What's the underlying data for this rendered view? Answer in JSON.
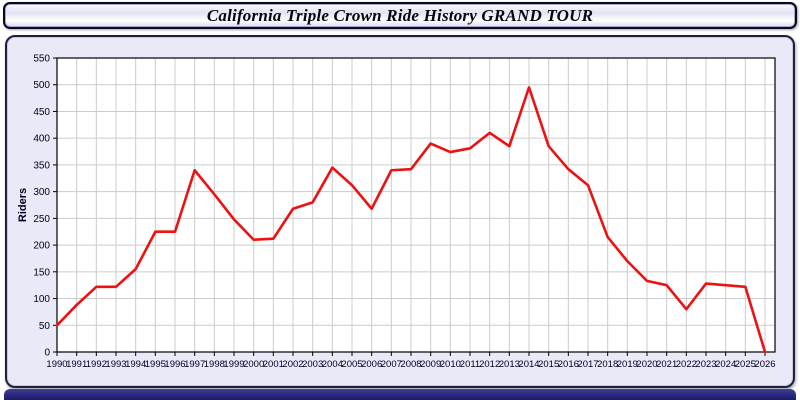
{
  "title": "California Triple Crown Ride History GRAND TOUR",
  "colors": {
    "line": "#ee1111",
    "grid": "#cccccc",
    "axis": "#000000",
    "panel_background": "#e9e9f7",
    "plot_background": "#ffffff",
    "bottom_bar": "#22227a",
    "tick_text": "#000022"
  },
  "chart_data": {
    "type": "line",
    "title": "California Triple Crown Ride History GRAND TOUR",
    "xlabel": "",
    "ylabel": "Riders",
    "ylim": [
      0,
      550
    ],
    "ytick_step": 50,
    "grid": true,
    "legend_position": "none",
    "x": [
      1990,
      1991,
      1992,
      1993,
      1994,
      1995,
      1996,
      1997,
      1998,
      1999,
      2000,
      2001,
      2002,
      2003,
      2004,
      2005,
      2006,
      2007,
      2008,
      2009,
      2010,
      2011,
      2012,
      2013,
      2014,
      2015,
      2016,
      2017,
      2018,
      2019,
      2020,
      2021,
      2022,
      2023,
      2024,
      2025,
      2026
    ],
    "series": [
      {
        "name": "Riders",
        "values": [
          50,
          88,
          122,
          122,
          155,
          225,
          225,
          340,
          295,
          248,
          210,
          212,
          268,
          280,
          345,
          312,
          268,
          340,
          342,
          390,
          374,
          381,
          410,
          385,
          495,
          385,
          342,
          312,
          215,
          170,
          133,
          125,
          80,
          128,
          125,
          122,
          0
        ]
      }
    ]
  }
}
